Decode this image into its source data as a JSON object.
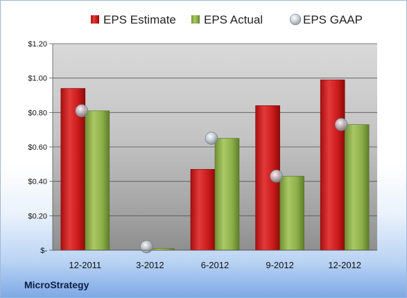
{
  "company": "MicroStrategy",
  "colors": {
    "estimate": "#cc1c1c",
    "actual": "#8db04a",
    "gaap": "#b9c2cc"
  },
  "chart_data": {
    "type": "bar",
    "categories": [
      "12-2011",
      "3-2012",
      "6-2012",
      "9-2012",
      "12-2012"
    ],
    "series": [
      {
        "name": "EPS Estimate",
        "kind": "bar",
        "values": [
          0.94,
          0,
          0.47,
          0.84,
          0.99
        ]
      },
      {
        "name": "EPS Actual",
        "kind": "bar",
        "values": [
          0.81,
          0.01,
          0.65,
          0.43,
          0.73
        ]
      },
      {
        "name": "EPS GAAP",
        "kind": "scatter",
        "values": [
          0.81,
          0.02,
          0.65,
          0.43,
          0.73
        ]
      }
    ],
    "yticks": [
      {
        "value": 0,
        "label": "$-"
      },
      {
        "value": 0.2,
        "label": "$0.20"
      },
      {
        "value": 0.4,
        "label": "$0.40"
      },
      {
        "value": 0.6,
        "label": "$0.60"
      },
      {
        "value": 0.8,
        "label": "$0.80"
      },
      {
        "value": 1.0,
        "label": "$1.00"
      },
      {
        "value": 1.2,
        "label": "$1.20"
      }
    ],
    "ylim": [
      0,
      1.2
    ],
    "grid": true,
    "legend": "top"
  }
}
